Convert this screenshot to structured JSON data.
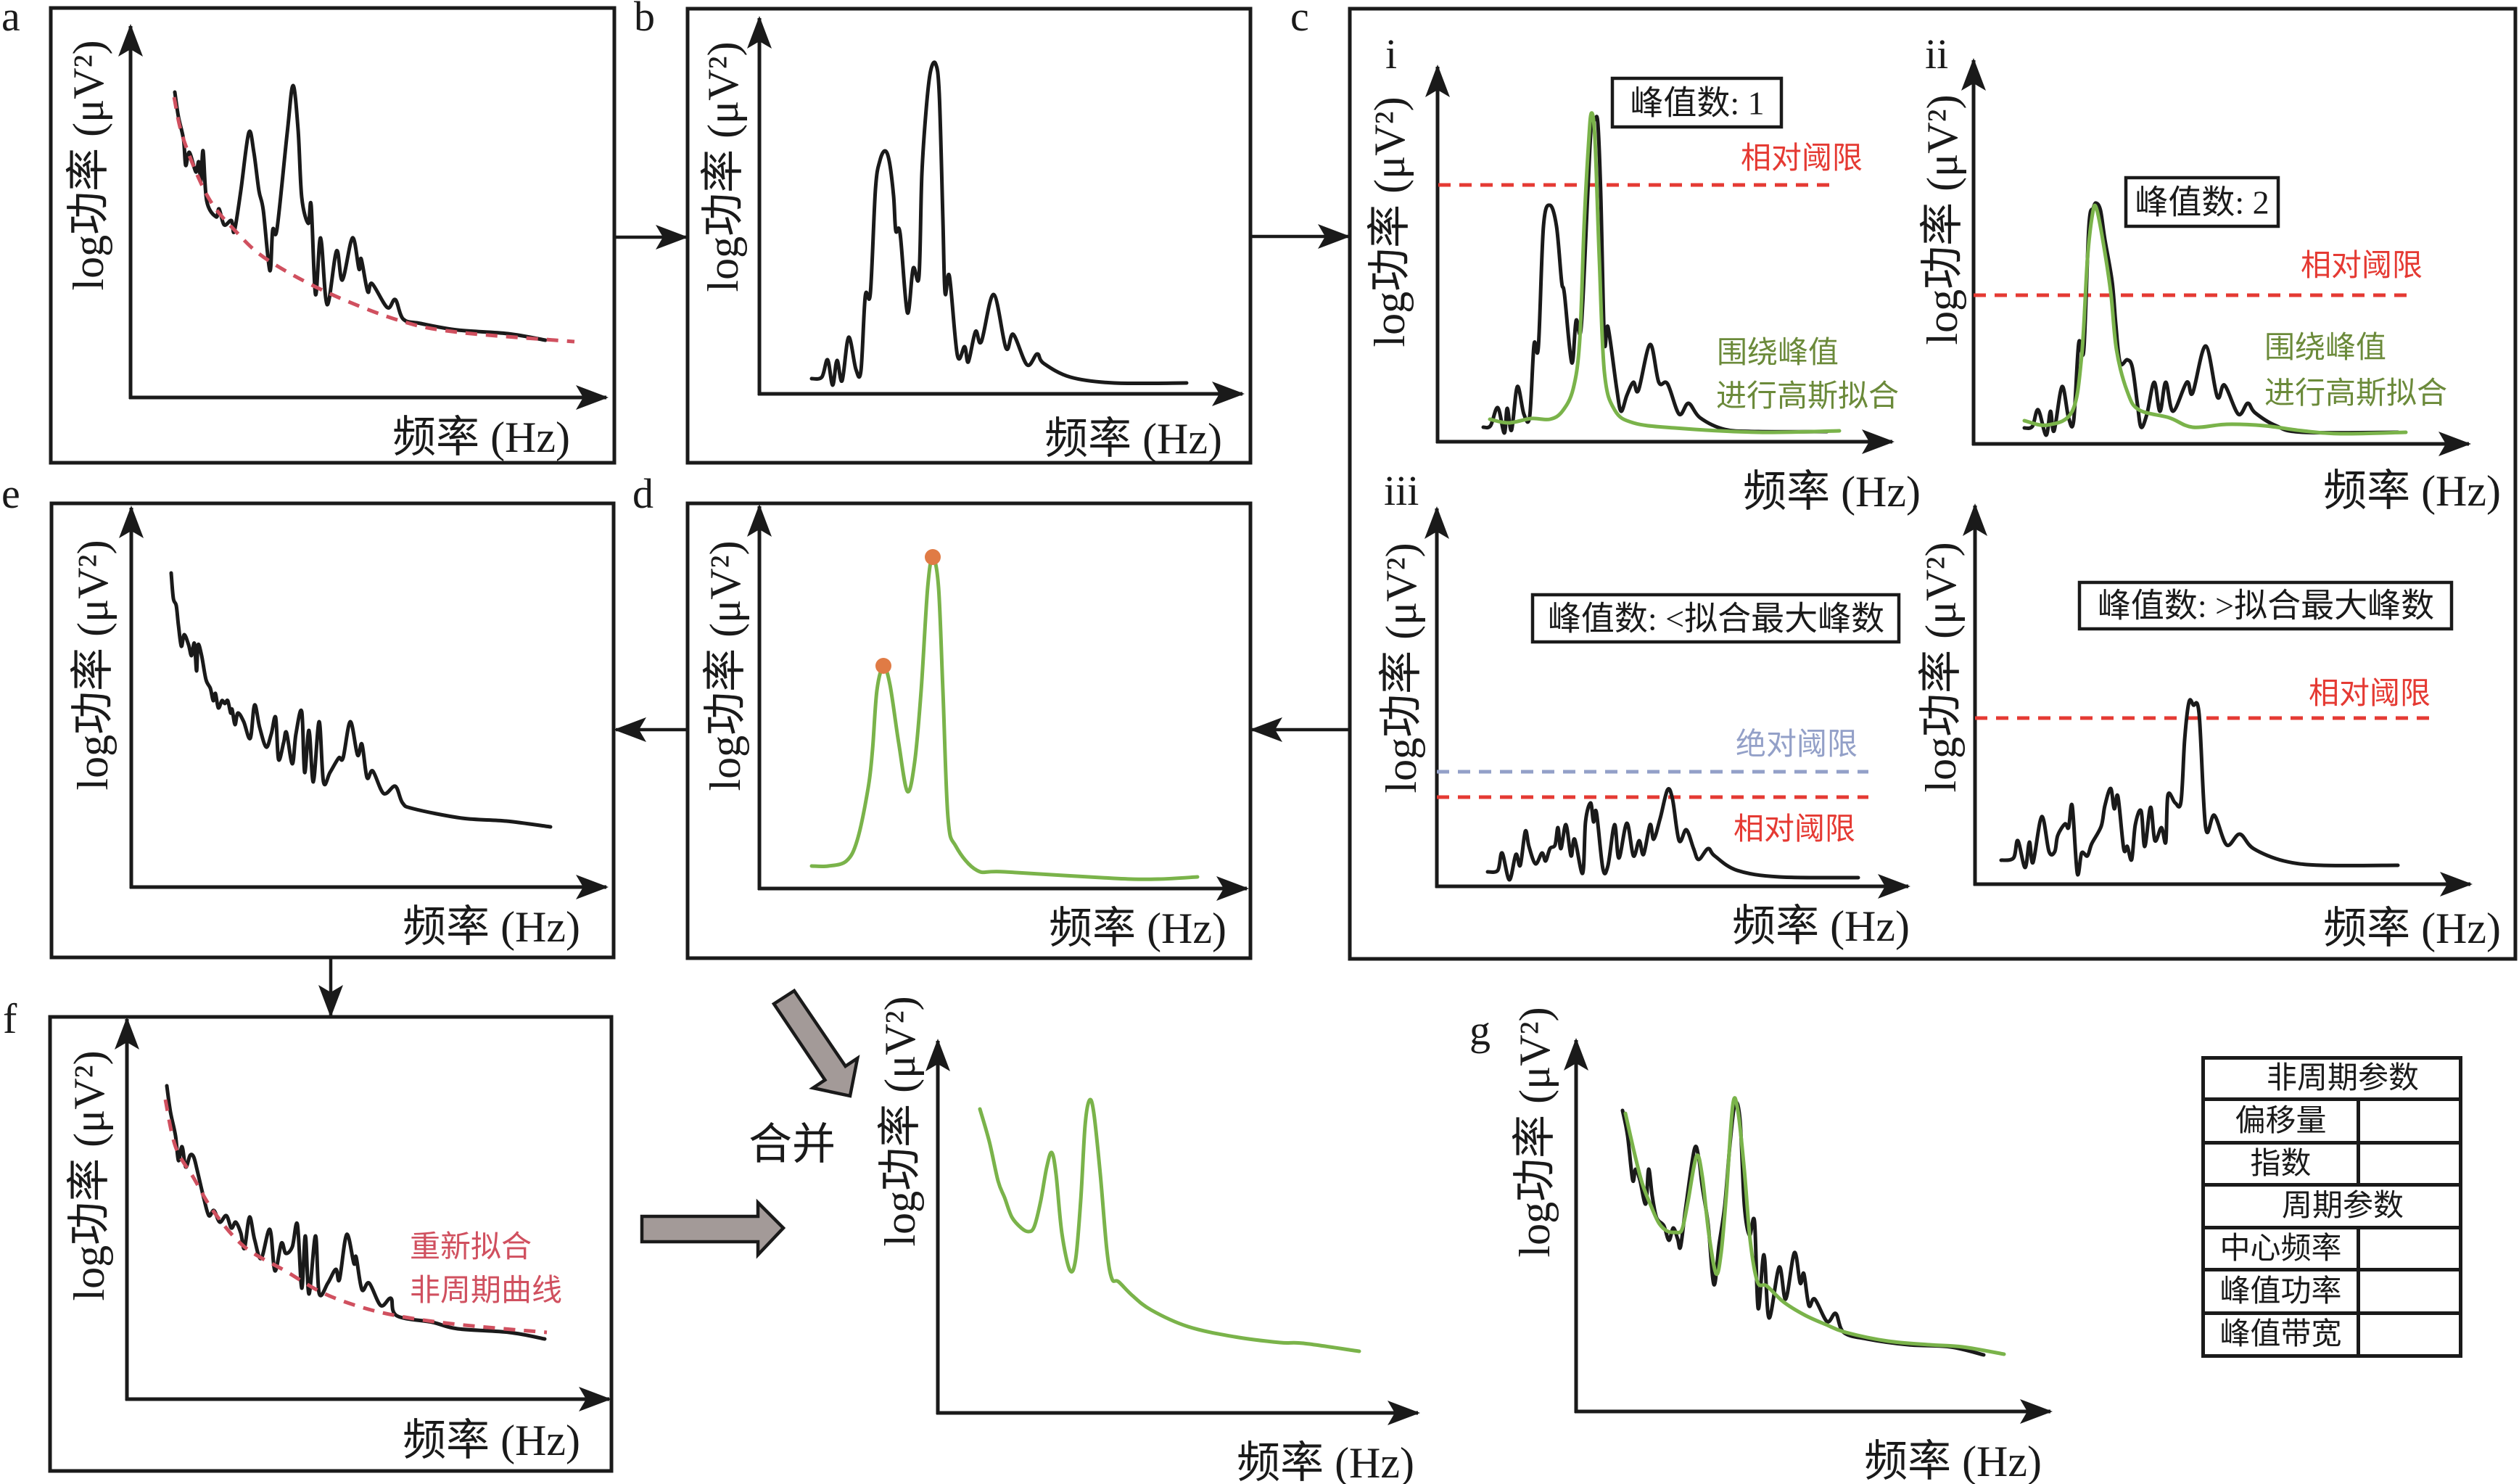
{
  "panels": {
    "a": {
      "label": "a",
      "x_axis_label": "频率 (Hz)",
      "y_axis_label": "log功率 (μV²)"
    },
    "b": {
      "label": "b",
      "x_axis_label": "频率 (Hz)",
      "y_axis_label": "log功率 (μV²)"
    },
    "c": {
      "label": "c",
      "subpanels": {
        "i": {
          "label": "i",
          "x_axis_label": "频率 (Hz)",
          "y_axis_label": "log功率 (μV²)",
          "peak_count_box": "峰值数: 1",
          "relative_threshold_label": "相对阈限",
          "gaussian_fit_note": [
            "围绕峰值",
            "进行高斯拟合"
          ]
        },
        "ii": {
          "label": "ii",
          "x_axis_label": "频率 (Hz)",
          "y_axis_label": "log功率 (μV²)",
          "peak_count_box": "峰值数: 2",
          "relative_threshold_label": "相对阈限",
          "gaussian_fit_note": [
            "围绕峰值",
            "进行高斯拟合"
          ]
        },
        "iii": {
          "label": "iii",
          "x_axis_label": "频率 (Hz)",
          "y_axis_label": "log功率 (μV²)",
          "peak_count_box": "峰值数: <拟合最大峰数",
          "absolute_threshold_label": "绝对阈限",
          "relative_threshold_label": "相对阈限"
        },
        "iv": {
          "x_axis_label": "频率 (Hz)",
          "y_axis_label": "log功率 (μV²)",
          "peak_count_box": "峰值数: >拟合最大峰数",
          "relative_threshold_label": "相对阈限"
        }
      }
    },
    "d": {
      "label": "d",
      "x_axis_label": "频率 (Hz)",
      "y_axis_label": "log功率 (μV²)"
    },
    "e": {
      "label": "e",
      "x_axis_label": "频率 (Hz)",
      "y_axis_label": "log功率 (μV²)"
    },
    "f": {
      "label": "f",
      "x_axis_label": "频率 (Hz)",
      "y_axis_label": "log功率 (μV²)",
      "refit_note": [
        "重新拟合",
        "非周期曲线"
      ]
    },
    "merged": {
      "merge_label": "合并",
      "x_axis_label": "频率 (Hz)",
      "y_axis_label": "log功率 (μV²)"
    },
    "g": {
      "label": "g",
      "x_axis_label": "频率 (Hz)",
      "y_axis_label": "log功率 (μV²)",
      "parameter_table": {
        "aperiodic_header": "非周期参数",
        "aperiodic_rows": [
          {
            "name": "偏移量",
            "value": ""
          },
          {
            "name": "指数",
            "value": ""
          }
        ],
        "periodic_header": "周期参数",
        "periodic_rows": [
          {
            "name": "中心频率",
            "value": ""
          },
          {
            "name": "峰值功率",
            "value": ""
          },
          {
            "name": "峰值带宽",
            "value": ""
          }
        ]
      }
    }
  },
  "colors": {
    "line": "#1a1a1a",
    "spectrum": "#1a1a1a",
    "aperiodic_fit": "#d0505f",
    "gaussian_fit": "#7ab34a",
    "relative_threshold": "#e53a33",
    "absolute_threshold": "#93a0c8",
    "annotation_green": "#6b8a3a",
    "peak_marker": "#e07b45",
    "block_arrow": "#a39a98"
  }
}
